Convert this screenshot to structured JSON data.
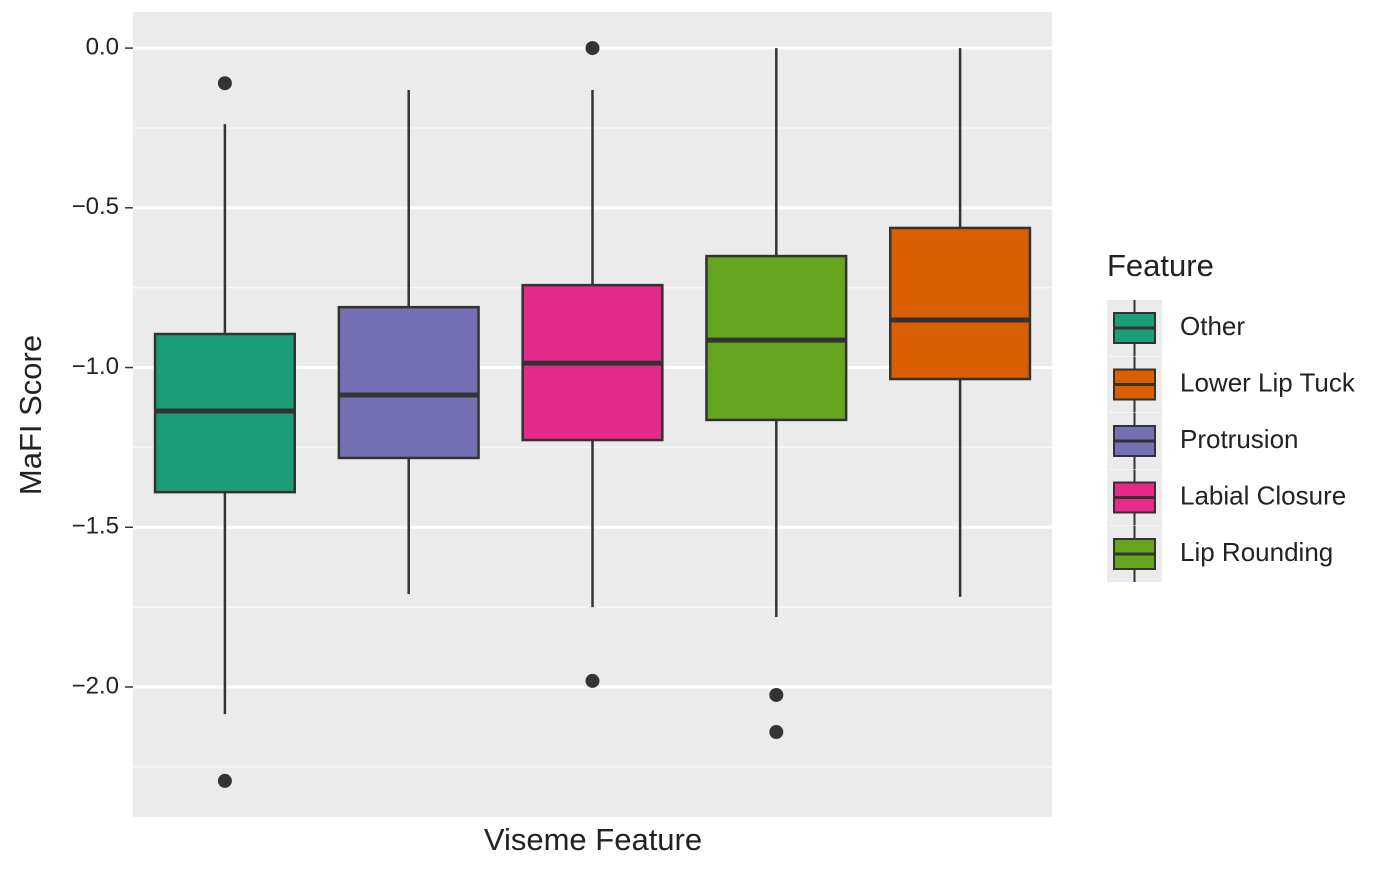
{
  "chart_data": {
    "type": "boxplot",
    "x_label": "Viseme Feature",
    "y_label": "MaFI Score",
    "ylim": [
      -2.407,
      0.113
    ],
    "yticks": [
      {
        "value": 0,
        "label": "0.0"
      },
      {
        "value": -0.5,
        "label": "−0.5"
      },
      {
        "value": -1,
        "label": "−1.0"
      },
      {
        "value": -1.5,
        "label": "−1.5"
      },
      {
        "value": -2,
        "label": "−2.0"
      }
    ],
    "grid": true,
    "series": [
      {
        "name": "Other",
        "color": "#1b9e77",
        "whisker_low": -2.085,
        "q1": -1.39,
        "median": -1.136,
        "q3": -0.895,
        "whisker_high": -0.238,
        "outliers": [
          -0.11,
          -2.294
        ]
      },
      {
        "name": "Protrusion",
        "color": "#7570b3",
        "whisker_low": -1.709,
        "q1": -1.283,
        "median": -1.086,
        "q3": -0.811,
        "whisker_high": -0.131,
        "outliers": []
      },
      {
        "name": "Labial Closure",
        "color": "#e7298a",
        "whisker_low": -1.75,
        "q1": -1.227,
        "median": -0.986,
        "q3": -0.742,
        "whisker_high": -0.131,
        "outliers": [
          0,
          -1.981
        ]
      },
      {
        "name": "Lip Rounding",
        "color": "#66a61e",
        "whisker_low": -1.781,
        "q1": -1.164,
        "median": -0.914,
        "q3": -0.651,
        "whisker_high": 0,
        "outliers": [
          -2.025,
          -2.141
        ]
      },
      {
        "name": "Lower Lip Tuck",
        "color": "#d95f02",
        "whisker_low": -1.718,
        "q1": -1.036,
        "median": -0.851,
        "q3": -0.563,
        "whisker_high": 0,
        "outliers": []
      }
    ],
    "legend": {
      "title": "Feature",
      "position": "right",
      "entries": [
        "Other",
        "Lower Lip Tuck",
        "Protrusion",
        "Labial Closure",
        "Lip Rounding"
      ]
    }
  }
}
